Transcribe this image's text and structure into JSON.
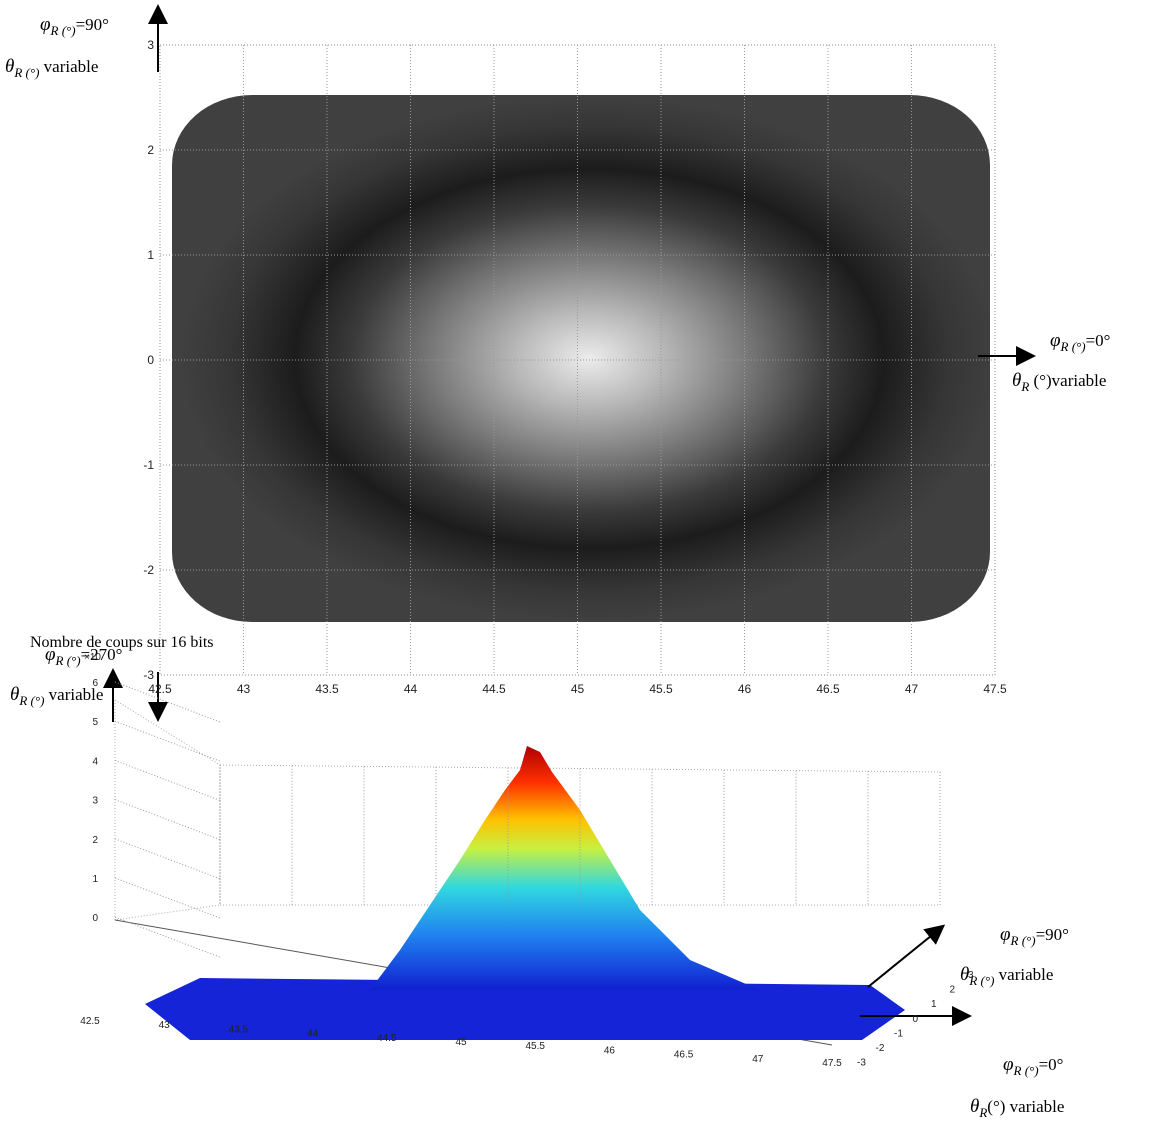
{
  "top_plot": {
    "xticks": [
      "42.5",
      "43",
      "43.5",
      "44",
      "44.5",
      "45",
      "45.5",
      "46",
      "46.5",
      "47",
      "47.5"
    ],
    "yticks": [
      "3",
      "2",
      "1",
      "0",
      "-1",
      "-2",
      "-3"
    ],
    "annotations": [
      {
        "symbol": "φ",
        "sub": "R (°)",
        "rest": "=90°"
      },
      {
        "symbol": "θ",
        "sub": "R (°)",
        "rest": " variable"
      },
      {
        "symbol": "φ",
        "sub": "R (°)",
        "rest": "=0°"
      },
      {
        "symbol": "θ",
        "sub": "R",
        "rest": " (°)variable"
      },
      {
        "symbol": "φ",
        "sub": "R (°)",
        "rest": "=270°"
      },
      {
        "symbol": "θ",
        "sub": "R (°)",
        "rest": " variable"
      }
    ]
  },
  "bottom_plot": {
    "title": "Nombre de coups sur 16 bits",
    "exponent_label": "×10",
    "zticks": [
      "6",
      "5",
      "4",
      "3",
      "2",
      "1",
      "0"
    ],
    "xticks": [
      "42.5",
      "43",
      "43.5",
      "44",
      "44.5",
      "45",
      "45.5",
      "46",
      "46.5",
      "47",
      "47.5"
    ],
    "yticks": [
      "3",
      "2",
      "1",
      "0",
      "-1",
      "-2",
      "-3"
    ],
    "annotations": [
      {
        "symbol": "φ",
        "sub": "R (°)",
        "rest": "=90°"
      },
      {
        "symbol": "θ",
        "sub": "R (°)",
        "rest": " variable"
      },
      {
        "symbol": "φ",
        "sub": "R (°)",
        "rest": "=0°"
      },
      {
        "symbol": "θ",
        "sub": "R",
        "rest": "(°) variable"
      }
    ]
  }
}
